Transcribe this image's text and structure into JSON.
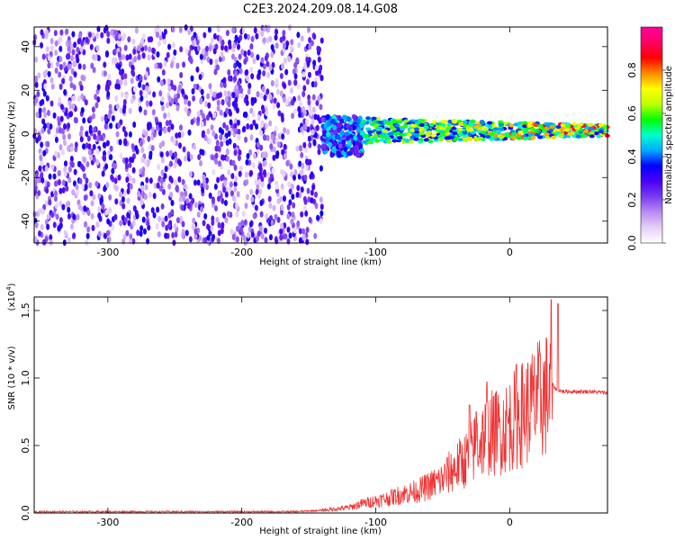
{
  "title": "C2E3.2024.209.08.14.G08",
  "chart_data": [
    {
      "type": "heatmap",
      "xlabel": "Height of straight line (km)",
      "ylabel": "Frequency (Hz)",
      "xlim": [
        -355,
        73
      ],
      "ylim": [
        -50,
        49
      ],
      "xticks": [
        -300,
        -200,
        -100,
        0
      ],
      "yticks": [
        -40,
        -20,
        0,
        20,
        40
      ],
      "colorbar": {
        "label": "Normalized spectral amplitude",
        "range": [
          0,
          1.0
        ],
        "ticks": [
          0.0,
          0.2,
          0.4,
          0.6,
          0.8
        ],
        "tick_labels": [
          "0.0",
          "0.2",
          "0.4",
          "0.6",
          "0.8"
        ],
        "colormap": [
          "#ffffff",
          "#e6cff7",
          "#b98cf2",
          "#7a3cf0",
          "#4b00f5",
          "#0000ff",
          "#00aaff",
          "#00ffcc",
          "#00ff00",
          "#bfff00",
          "#ffff00",
          "#ff8800",
          "#ff0000",
          "#ff0066",
          "#ff0099"
        ]
      },
      "regions": [
        {
          "name": "noise",
          "x": [
            -355,
            -140
          ],
          "freq_span": [
            -50,
            49
          ],
          "amplitude": [
            0.05,
            0.35
          ]
        },
        {
          "name": "transition",
          "x": [
            -140,
            -110
          ],
          "freq_span": [
            -10,
            8
          ],
          "amplitude": [
            0.2,
            0.5
          ]
        },
        {
          "name": "signal",
          "x": [
            -110,
            73
          ],
          "center_freq": 1.5,
          "half_width": [
            6,
            2.5
          ],
          "amplitude": [
            0.3,
            0.95
          ]
        }
      ],
      "grid": false
    },
    {
      "type": "line",
      "xlabel": "Height of straight line (km)",
      "ylabel": "SNR (10 * v/v)",
      "yscale_label": "(x10",
      "yscale_exp": "4",
      "yscale_close": ")",
      "xlim": [
        -355,
        73
      ],
      "ylim": [
        0,
        1.6
      ],
      "xticks": [
        -300,
        -200,
        -100,
        0
      ],
      "yticks": [
        0.0,
        0.5,
        1.0,
        1.5
      ],
      "ytick_labels": [
        "0.0",
        "0.5",
        "1.0",
        "1.5"
      ],
      "series": [
        {
          "color": "#ee3333",
          "x": [
            -355,
            -300,
            -250,
            -200,
            -160,
            -140,
            -120,
            -110,
            -100,
            -90,
            -80,
            -70,
            -60,
            -50,
            -45,
            -40,
            -35,
            -30,
            -25,
            -20,
            -15,
            -10,
            -5,
            0,
            5,
            10,
            15,
            20,
            25,
            28,
            30,
            32,
            35,
            40,
            50,
            60,
            73
          ],
          "y": [
            0.01,
            0.01,
            0.01,
            0.01,
            0.01,
            0.02,
            0.04,
            0.07,
            0.09,
            0.11,
            0.14,
            0.16,
            0.2,
            0.25,
            0.3,
            0.34,
            0.38,
            0.42,
            0.5,
            0.55,
            0.6,
            0.58,
            0.62,
            0.66,
            0.7,
            0.74,
            0.78,
            0.82,
            0.86,
            0.88,
            0.9,
            0.95,
            0.91,
            0.9,
            0.9,
            0.9,
            0.89
          ]
        }
      ],
      "spikes": [
        {
          "x": -17,
          "y": 0.97
        },
        {
          "x": 5,
          "y": 1.1
        },
        {
          "x": 31,
          "y": 1.58
        },
        {
          "x": 36,
          "y": 1.55
        },
        {
          "x": -30,
          "y": 0.8
        },
        {
          "x": -25,
          "y": 0.75
        },
        {
          "x": 20,
          "y": 1.02
        },
        {
          "x": -10,
          "y": 0.9
        }
      ],
      "grid": false
    }
  ]
}
